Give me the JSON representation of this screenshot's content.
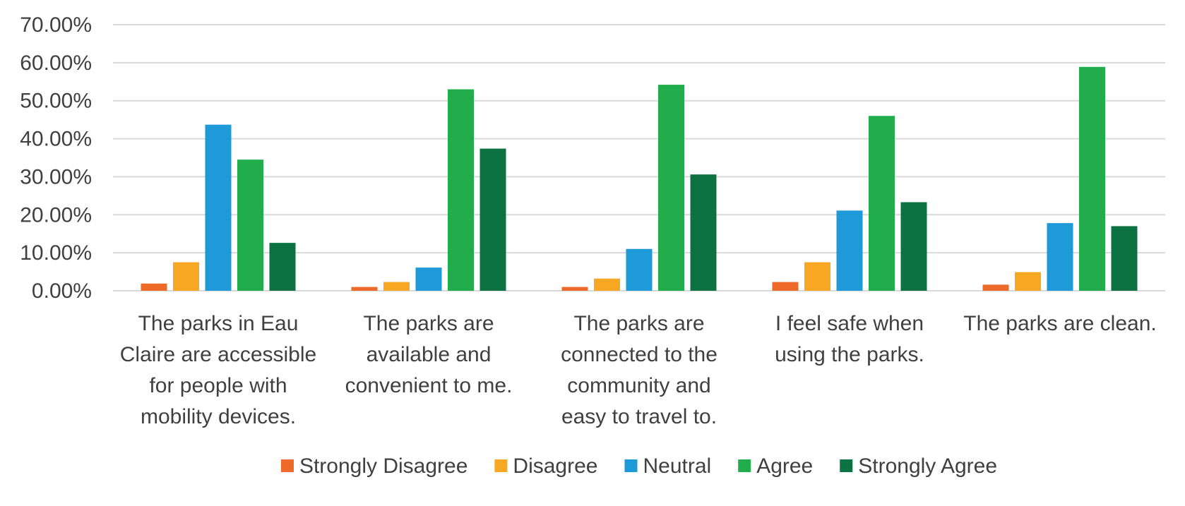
{
  "chart_data": {
    "type": "bar",
    "title": "",
    "xlabel": "",
    "ylabel": "",
    "ylim": [
      0,
      70
    ],
    "grid": true,
    "legend_position": "bottom",
    "y_ticks": [
      {
        "value": 0,
        "label": "0.00%"
      },
      {
        "value": 10,
        "label": "10.00%"
      },
      {
        "value": 20,
        "label": "20.00%"
      },
      {
        "value": 30,
        "label": "30.00%"
      },
      {
        "value": 40,
        "label": "40.00%"
      },
      {
        "value": 50,
        "label": "50.00%"
      },
      {
        "value": 60,
        "label": "60.00%"
      },
      {
        "value": 70,
        "label": "70.00%"
      }
    ],
    "categories": [
      [
        "The parks in Eau",
        "Claire are accessible",
        "for people with",
        "mobility devices."
      ],
      [
        "The parks are",
        "available and",
        "convenient to me."
      ],
      [
        "The parks are",
        "connected to the",
        "community and",
        "easy to travel to."
      ],
      [
        "I feel safe when",
        "using the parks."
      ],
      [
        "The parks are clean."
      ]
    ],
    "series": [
      {
        "name": "Strongly Disagree",
        "color": "#ed6a29",
        "values": [
          1.9,
          1.0,
          1.0,
          2.3,
          1.6
        ]
      },
      {
        "name": "Disagree",
        "color": "#f7a722",
        "values": [
          7.5,
          2.3,
          3.2,
          7.5,
          4.9
        ]
      },
      {
        "name": "Neutral",
        "color": "#1e9ad8",
        "values": [
          43.7,
          6.1,
          11.0,
          21.1,
          17.8
        ]
      },
      {
        "name": "Agree",
        "color": "#22ad4c",
        "values": [
          34.5,
          53.0,
          54.2,
          46.0,
          58.9
        ]
      },
      {
        "name": "Strongly Agree",
        "color": "#0d7241",
        "values": [
          12.6,
          37.4,
          30.6,
          23.3,
          17.0
        ]
      }
    ]
  }
}
